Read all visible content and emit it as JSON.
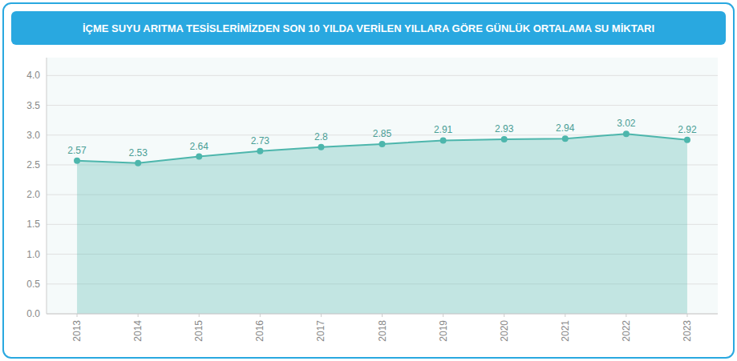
{
  "chart_data": {
    "type": "line",
    "title": "İÇME SUYU ARITMA TESİSLERİMİZDEN SON 10 YILDA VERİLEN YILLARA GÖRE GÜNLÜK ORTALAMA SU MİKTARI",
    "x": [
      2013,
      2014,
      2015,
      2016,
      2017,
      2018,
      2019,
      2020,
      2021,
      2022,
      2023
    ],
    "values": [
      2.57,
      2.53,
      2.64,
      2.73,
      2.8,
      2.85,
      2.91,
      2.93,
      2.94,
      3.02,
      2.92
    ],
    "color": "#4db6ac",
    "xlim": [
      2012.5,
      2023.5
    ],
    "xticks": [
      2013,
      2014,
      2015,
      2016,
      2017,
      2018,
      2019,
      2020,
      2021,
      2022,
      2023
    ],
    "ylim": [
      0,
      4.3
    ],
    "yticks": [
      {
        "value": 0,
        "label": "0.0"
      },
      0.5,
      {
        "value": 1,
        "label": "1.0"
      },
      1.5,
      {
        "value": 2,
        "label": "2.0"
      },
      2.5,
      {
        "value": 3,
        "label": "3.0"
      },
      3.5,
      {
        "value": 4,
        "label": "4.0"
      }
    ],
    "grid": true,
    "data_labels": true
  }
}
